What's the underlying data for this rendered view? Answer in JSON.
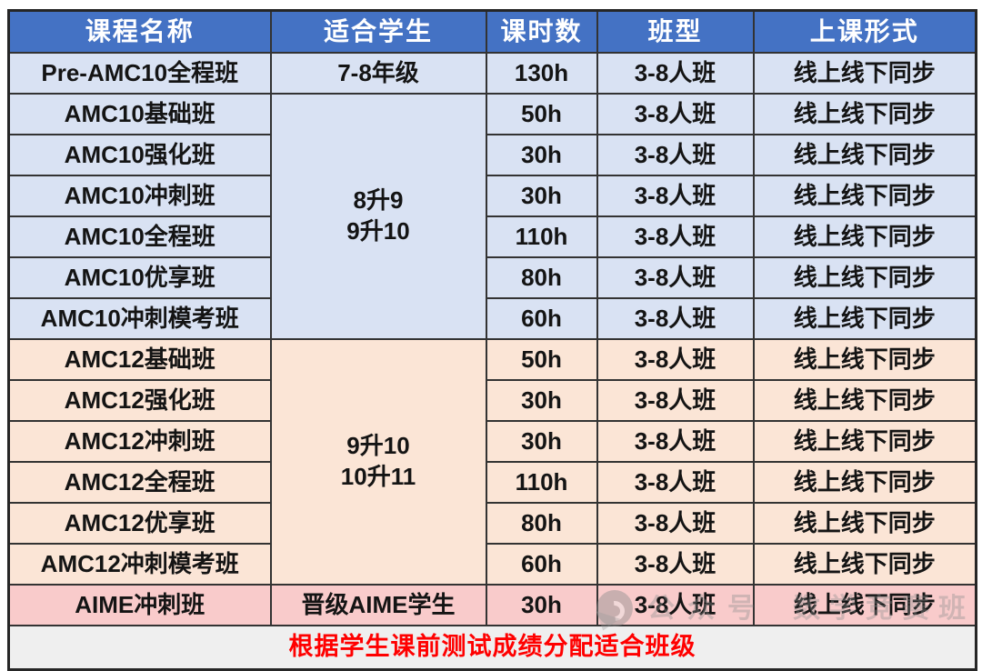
{
  "table": {
    "headers": [
      {
        "label": "课程名称"
      },
      {
        "label": "适合学生"
      },
      {
        "label": "课时数"
      },
      {
        "label": "班型"
      },
      {
        "label": "上课形式"
      }
    ],
    "rows": [
      {
        "name": "Pre-AMC10全程班",
        "student": "7-8年级",
        "hours": "130h",
        "size": "3-8人班",
        "format": "线上线下同步"
      },
      {
        "name": "AMC10基础班",
        "hours": "50h",
        "size": "3-8人班",
        "format": "线上线下同步"
      },
      {
        "name": "AMC10强化班",
        "hours": "30h",
        "size": "3-8人班",
        "format": "线上线下同步"
      },
      {
        "name": "AMC10冲刺班",
        "hours": "30h",
        "size": "3-8人班",
        "format": "线上线下同步"
      },
      {
        "name": "AMC10全程班",
        "hours": "110h",
        "size": "3-8人班",
        "format": "线上线下同步"
      },
      {
        "name": "AMC10优享班",
        "hours": "80h",
        "size": "3-8人班",
        "format": "线上线下同步"
      },
      {
        "name": "AMC10冲刺模考班",
        "hours": "60h",
        "size": "3-8人班",
        "format": "线上线下同步"
      },
      {
        "name": "AMC12基础班",
        "hours": "50h",
        "size": "3-8人班",
        "format": "线上线下同步"
      },
      {
        "name": "AMC12强化班",
        "hours": "30h",
        "size": "3-8人班",
        "format": "线上线下同步"
      },
      {
        "name": "AMC12冲刺班",
        "hours": "30h",
        "size": "3-8人班",
        "format": "线上线下同步"
      },
      {
        "name": "AMC12全程班",
        "hours": "110h",
        "size": "3-8人班",
        "format": "线上线下同步"
      },
      {
        "name": "AMC12优享班",
        "hours": "80h",
        "size": "3-8人班",
        "format": "线上线下同步"
      },
      {
        "name": "AMC12冲刺模考班",
        "hours": "60h",
        "size": "3-8人班",
        "format": "线上线下同步"
      },
      {
        "name": "AIME冲刺班",
        "student": "晋级AIME学生",
        "hours": "30h",
        "size": "3-8人班",
        "format": "线上线下同步"
      }
    ],
    "merged_students": {
      "amc10": {
        "line1": "8升9",
        "line2": "9升10"
      },
      "amc12": {
        "line1": "9升10",
        "line2": "10升11"
      }
    },
    "footer_note": "根据学生课前测试成绩分配适合班级",
    "colors": {
      "header_bg": "#4472C4",
      "header_text": "#FFFFFF",
      "amc10_bg": "#D9E2F3",
      "amc12_bg": "#FBE5D6",
      "aime_bg": "#F9CBCB",
      "footer_bg": "#EFEFEF",
      "footer_text": "#FF0000",
      "border": "#333333"
    }
  },
  "watermark": {
    "logo": "watermark-logo",
    "text_left": "公众号",
    "text_right": "数学竞赛班"
  },
  "chart_data": {
    "type": "table",
    "columns": [
      "课程名称",
      "适合学生",
      "课时数",
      "班型",
      "上课形式"
    ],
    "rows": [
      [
        "Pre-AMC10全程班",
        "7-8年级",
        "130h",
        "3-8人班",
        "线上线下同步"
      ],
      [
        "AMC10基础班",
        "8升9 9升10",
        "50h",
        "3-8人班",
        "线上线下同步"
      ],
      [
        "AMC10强化班",
        "8升9 9升10",
        "30h",
        "3-8人班",
        "线上线下同步"
      ],
      [
        "AMC10冲刺班",
        "8升9 9升10",
        "30h",
        "3-8人班",
        "线上线下同步"
      ],
      [
        "AMC10全程班",
        "8升9 9升10",
        "110h",
        "3-8人班",
        "线上线下同步"
      ],
      [
        "AMC10优享班",
        "8升9 9升10",
        "80h",
        "3-8人班",
        "线上线下同步"
      ],
      [
        "AMC10冲刺模考班",
        "8升9 9升10",
        "60h",
        "3-8人班",
        "线上线下同步"
      ],
      [
        "AMC12基础班",
        "9升10 10升11",
        "50h",
        "3-8人班",
        "线上线下同步"
      ],
      [
        "AMC12强化班",
        "9升10 10升11",
        "30h",
        "3-8人班",
        "线上线下同步"
      ],
      [
        "AMC12冲刺班",
        "9升10 10升11",
        "30h",
        "3-8人班",
        "线上线下同步"
      ],
      [
        "AMC12全程班",
        "9升10 10升11",
        "110h",
        "3-8人班",
        "线上线下同步"
      ],
      [
        "AMC12优享班",
        "9升10 10升11",
        "80h",
        "3-8人班",
        "线上线下同步"
      ],
      [
        "AMC12冲刺模考班",
        "9升10 10升11",
        "60h",
        "3-8人班",
        "线上线下同步"
      ],
      [
        "AIME冲刺班",
        "晋级AIME学生",
        "30h",
        "3-8人班",
        "线上线下同步"
      ]
    ],
    "footer": "根据学生课前测试成绩分配适合班级",
    "title": "",
    "legend_position": "none"
  }
}
